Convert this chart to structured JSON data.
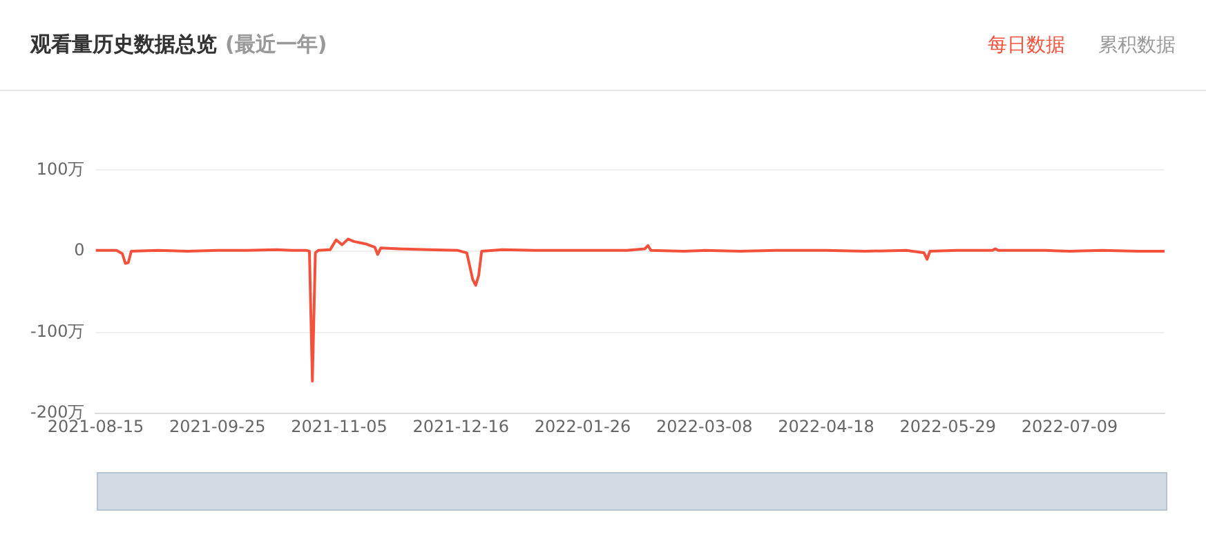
{
  "chart_data": {
    "type": "line",
    "title": "观看量历史数据总览",
    "subtitle": "(最近一年)",
    "annotations": [
      "每日数据",
      "累积数据"
    ],
    "x": [
      "2021-08-15",
      "2021-08-22",
      "2021-08-24",
      "2021-08-25",
      "2021-08-26",
      "2021-08-27",
      "2021-09-05",
      "2021-09-15",
      "2021-09-25",
      "2021-10-05",
      "2021-10-15",
      "2021-10-20",
      "2021-10-25",
      "2021-10-26",
      "2021-10-27",
      "2021-10-28",
      "2021-10-29",
      "2021-11-02",
      "2021-11-04",
      "2021-11-06",
      "2021-11-08",
      "2021-11-10",
      "2021-11-14",
      "2021-11-17",
      "2021-11-18",
      "2021-11-19",
      "2021-11-25",
      "2021-12-05",
      "2021-12-15",
      "2021-12-18",
      "2021-12-20",
      "2021-12-21",
      "2021-12-22",
      "2021-12-23",
      "2021-12-30",
      "2022-01-10",
      "2022-01-26",
      "2022-02-10",
      "2022-02-16",
      "2022-02-17",
      "2022-02-18",
      "2022-03-01",
      "2022-03-08",
      "2022-03-20",
      "2022-04-01",
      "2022-04-18",
      "2022-05-01",
      "2022-05-15",
      "2022-05-21",
      "2022-05-22",
      "2022-05-23",
      "2022-06-01",
      "2022-06-13",
      "2022-06-14",
      "2022-06-15",
      "2022-07-01",
      "2022-07-09",
      "2022-07-20",
      "2022-08-01",
      "2022-08-10"
    ],
    "series": [
      {
        "color": "#f4513c",
        "values": [
          1,
          1,
          -3,
          -15,
          -14,
          0,
          1,
          0,
          1,
          1,
          2,
          1,
          1,
          0,
          -160,
          -2,
          1,
          2,
          14,
          8,
          15,
          12,
          9,
          5,
          -4,
          4,
          3,
          2,
          1,
          -2,
          -35,
          -42,
          -30,
          0,
          2,
          1,
          1,
          1,
          3,
          7,
          1,
          0,
          1,
          0,
          1,
          1,
          0,
          1,
          -2,
          -10,
          0,
          1,
          1,
          3,
          1,
          1,
          0,
          1,
          0,
          0
        ]
      }
    ],
    "xlim": [
      "2021-08-15",
      "2022-08-10"
    ],
    "xticks": [
      "2021-08-15",
      "2021-09-25",
      "2021-11-05",
      "2021-12-16",
      "2022-01-26",
      "2022-03-08",
      "2022-04-18",
      "2022-05-29",
      "2022-07-09"
    ],
    "ylim": [
      -200,
      100
    ],
    "yticks": [
      {
        "value": -200,
        "label": "-200万"
      },
      {
        "value": -100,
        "label": "-100万"
      },
      0,
      {
        "value": 100,
        "label": "100万"
      }
    ],
    "grid": "y",
    "legend": false,
    "marker": "none",
    "line_style": "solid"
  }
}
